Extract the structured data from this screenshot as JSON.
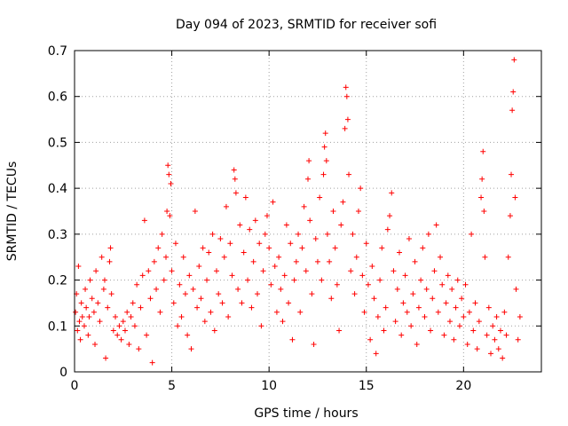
{
  "chart_data": {
    "type": "scatter",
    "title": "Day 094 of 2023, SRMTID for receiver sofi",
    "xlabel": "GPS time / hours",
    "ylabel": "SRMTID / TECUs",
    "xlim": [
      0,
      24
    ],
    "ylim": [
      0,
      0.7
    ],
    "xticks": [
      0,
      5,
      10,
      15,
      20
    ],
    "xtick_labels": [
      "0",
      "5",
      "10",
      "15",
      "20"
    ],
    "yticks": [
      0,
      0.1,
      0.2,
      0.3,
      0.4,
      0.5,
      0.6,
      0.7
    ],
    "ytick_labels": [
      "0",
      "0.1",
      "0.2",
      "0.3",
      "0.4",
      "0.5",
      "0.6",
      "0.7"
    ],
    "grid": true,
    "marker": "+",
    "color": "#ff0000",
    "series": [
      {
        "name": "SRMTID",
        "points": [
          [
            0.05,
            0.13
          ],
          [
            0.1,
            0.17
          ],
          [
            0.15,
            0.09
          ],
          [
            0.2,
            0.23
          ],
          [
            0.25,
            0.11
          ],
          [
            0.3,
            0.07
          ],
          [
            0.35,
            0.15
          ],
          [
            0.4,
            0.12
          ],
          [
            0.5,
            0.1
          ],
          [
            0.55,
            0.18
          ],
          [
            0.6,
            0.14
          ],
          [
            0.7,
            0.08
          ],
          [
            0.75,
            0.12
          ],
          [
            0.8,
            0.2
          ],
          [
            0.9,
            0.16
          ],
          [
            1.0,
            0.13
          ],
          [
            1.05,
            0.06
          ],
          [
            1.1,
            0.22
          ],
          [
            1.2,
            0.15
          ],
          [
            1.3,
            0.11
          ],
          [
            1.4,
            0.25
          ],
          [
            1.5,
            0.18
          ],
          [
            1.55,
            0.2
          ],
          [
            1.6,
            0.03
          ],
          [
            1.7,
            0.14
          ],
          [
            1.8,
            0.24
          ],
          [
            1.85,
            0.27
          ],
          [
            1.9,
            0.17
          ],
          [
            2.0,
            0.09
          ],
          [
            2.1,
            0.12
          ],
          [
            2.2,
            0.08
          ],
          [
            2.3,
            0.1
          ],
          [
            2.4,
            0.07
          ],
          [
            2.5,
            0.11
          ],
          [
            2.6,
            0.09
          ],
          [
            2.7,
            0.13
          ],
          [
            2.8,
            0.06
          ],
          [
            2.9,
            0.12
          ],
          [
            3.0,
            0.15
          ],
          [
            3.1,
            0.1
          ],
          [
            3.2,
            0.19
          ],
          [
            3.3,
            0.05
          ],
          [
            3.4,
            0.14
          ],
          [
            3.5,
            0.21
          ],
          [
            3.6,
            0.33
          ],
          [
            3.7,
            0.08
          ],
          [
            3.8,
            0.22
          ],
          [
            3.9,
            0.16
          ],
          [
            4.0,
            0.02
          ],
          [
            4.1,
            0.24
          ],
          [
            4.2,
            0.18
          ],
          [
            4.3,
            0.27
          ],
          [
            4.4,
            0.13
          ],
          [
            4.5,
            0.3
          ],
          [
            4.6,
            0.2
          ],
          [
            4.7,
            0.25
          ],
          [
            4.75,
            0.35
          ],
          [
            4.8,
            0.45
          ],
          [
            4.85,
            0.43
          ],
          [
            4.9,
            0.34
          ],
          [
            4.95,
            0.41
          ],
          [
            5.0,
            0.22
          ],
          [
            5.1,
            0.15
          ],
          [
            5.2,
            0.28
          ],
          [
            5.3,
            0.1
          ],
          [
            5.4,
            0.19
          ],
          [
            5.5,
            0.12
          ],
          [
            5.6,
            0.25
          ],
          [
            5.7,
            0.17
          ],
          [
            5.8,
            0.08
          ],
          [
            5.9,
            0.21
          ],
          [
            6.0,
            0.05
          ],
          [
            6.1,
            0.18
          ],
          [
            6.2,
            0.35
          ],
          [
            6.3,
            0.14
          ],
          [
            6.4,
            0.23
          ],
          [
            6.5,
            0.16
          ],
          [
            6.6,
            0.27
          ],
          [
            6.7,
            0.11
          ],
          [
            6.8,
            0.2
          ],
          [
            6.9,
            0.26
          ],
          [
            7.0,
            0.13
          ],
          [
            7.1,
            0.3
          ],
          [
            7.2,
            0.09
          ],
          [
            7.3,
            0.22
          ],
          [
            7.4,
            0.17
          ],
          [
            7.5,
            0.29
          ],
          [
            7.6,
            0.15
          ],
          [
            7.7,
            0.25
          ],
          [
            7.8,
            0.36
          ],
          [
            7.9,
            0.12
          ],
          [
            8.0,
            0.28
          ],
          [
            8.1,
            0.21
          ],
          [
            8.2,
            0.44
          ],
          [
            8.25,
            0.42
          ],
          [
            8.3,
            0.39
          ],
          [
            8.4,
            0.18
          ],
          [
            8.5,
            0.32
          ],
          [
            8.6,
            0.15
          ],
          [
            8.7,
            0.26
          ],
          [
            8.8,
            0.38
          ],
          [
            8.9,
            0.2
          ],
          [
            9.0,
            0.31
          ],
          [
            9.1,
            0.14
          ],
          [
            9.2,
            0.24
          ],
          [
            9.3,
            0.33
          ],
          [
            9.4,
            0.17
          ],
          [
            9.5,
            0.28
          ],
          [
            9.6,
            0.1
          ],
          [
            9.7,
            0.22
          ],
          [
            9.8,
            0.3
          ],
          [
            9.9,
            0.34
          ],
          [
            10.0,
            0.27
          ],
          [
            10.1,
            0.19
          ],
          [
            10.2,
            0.37
          ],
          [
            10.3,
            0.23
          ],
          [
            10.4,
            0.13
          ],
          [
            10.5,
            0.25
          ],
          [
            10.6,
            0.18
          ],
          [
            10.7,
            0.11
          ],
          [
            10.8,
            0.21
          ],
          [
            10.9,
            0.32
          ],
          [
            11.0,
            0.15
          ],
          [
            11.1,
            0.28
          ],
          [
            11.2,
            0.07
          ],
          [
            11.3,
            0.2
          ],
          [
            11.4,
            0.24
          ],
          [
            11.5,
            0.3
          ],
          [
            11.6,
            0.13
          ],
          [
            11.7,
            0.27
          ],
          [
            11.8,
            0.36
          ],
          [
            11.9,
            0.22
          ],
          [
            12.0,
            0.42
          ],
          [
            12.05,
            0.46
          ],
          [
            12.1,
            0.33
          ],
          [
            12.2,
            0.17
          ],
          [
            12.3,
            0.06
          ],
          [
            12.4,
            0.29
          ],
          [
            12.5,
            0.24
          ],
          [
            12.6,
            0.38
          ],
          [
            12.7,
            0.2
          ],
          [
            12.8,
            0.43
          ],
          [
            12.85,
            0.49
          ],
          [
            12.9,
            0.52
          ],
          [
            12.95,
            0.46
          ],
          [
            13.0,
            0.3
          ],
          [
            13.1,
            0.24
          ],
          [
            13.2,
            0.16
          ],
          [
            13.3,
            0.35
          ],
          [
            13.4,
            0.27
          ],
          [
            13.5,
            0.19
          ],
          [
            13.6,
            0.09
          ],
          [
            13.7,
            0.32
          ],
          [
            13.8,
            0.37
          ],
          [
            13.9,
            0.53
          ],
          [
            13.95,
            0.62
          ],
          [
            14.0,
            0.6
          ],
          [
            14.05,
            0.55
          ],
          [
            14.1,
            0.43
          ],
          [
            14.2,
            0.22
          ],
          [
            14.3,
            0.3
          ],
          [
            14.4,
            0.17
          ],
          [
            14.5,
            0.25
          ],
          [
            14.6,
            0.35
          ],
          [
            14.7,
            0.4
          ],
          [
            14.8,
            0.21
          ],
          [
            14.9,
            0.13
          ],
          [
            15.0,
            0.28
          ],
          [
            15.1,
            0.19
          ],
          [
            15.2,
            0.07
          ],
          [
            15.3,
            0.23
          ],
          [
            15.4,
            0.16
          ],
          [
            15.5,
            0.04
          ],
          [
            15.6,
            0.12
          ],
          [
            15.7,
            0.2
          ],
          [
            15.8,
            0.27
          ],
          [
            15.9,
            0.09
          ],
          [
            16.0,
            0.14
          ],
          [
            16.1,
            0.31
          ],
          [
            16.2,
            0.34
          ],
          [
            16.3,
            0.39
          ],
          [
            16.4,
            0.22
          ],
          [
            16.5,
            0.11
          ],
          [
            16.6,
            0.18
          ],
          [
            16.7,
            0.26
          ],
          [
            16.8,
            0.08
          ],
          [
            16.9,
            0.15
          ],
          [
            17.0,
            0.21
          ],
          [
            17.1,
            0.13
          ],
          [
            17.2,
            0.29
          ],
          [
            17.3,
            0.1
          ],
          [
            17.4,
            0.17
          ],
          [
            17.5,
            0.24
          ],
          [
            17.6,
            0.06
          ],
          [
            17.7,
            0.14
          ],
          [
            17.8,
            0.2
          ],
          [
            17.9,
            0.27
          ],
          [
            18.0,
            0.12
          ],
          [
            18.1,
            0.18
          ],
          [
            18.2,
            0.3
          ],
          [
            18.3,
            0.09
          ],
          [
            18.4,
            0.16
          ],
          [
            18.5,
            0.22
          ],
          [
            18.6,
            0.32
          ],
          [
            18.7,
            0.13
          ],
          [
            18.8,
            0.25
          ],
          [
            18.9,
            0.19
          ],
          [
            19.0,
            0.08
          ],
          [
            19.1,
            0.15
          ],
          [
            19.2,
            0.21
          ],
          [
            19.3,
            0.11
          ],
          [
            19.4,
            0.18
          ],
          [
            19.5,
            0.07
          ],
          [
            19.6,
            0.14
          ],
          [
            19.7,
            0.2
          ],
          [
            19.8,
            0.1
          ],
          [
            19.9,
            0.16
          ],
          [
            20.0,
            0.12
          ],
          [
            20.1,
            0.19
          ],
          [
            20.2,
            0.06
          ],
          [
            20.3,
            0.13
          ],
          [
            20.4,
            0.3
          ],
          [
            20.5,
            0.09
          ],
          [
            20.6,
            0.15
          ],
          [
            20.7,
            0.05
          ],
          [
            20.8,
            0.11
          ],
          [
            20.9,
            0.38
          ],
          [
            20.95,
            0.42
          ],
          [
            21.0,
            0.48
          ],
          [
            21.05,
            0.35
          ],
          [
            21.1,
            0.25
          ],
          [
            21.2,
            0.08
          ],
          [
            21.3,
            0.14
          ],
          [
            21.4,
            0.04
          ],
          [
            21.5,
            0.1
          ],
          [
            21.6,
            0.07
          ],
          [
            21.7,
            0.12
          ],
          [
            21.8,
            0.05
          ],
          [
            21.9,
            0.09
          ],
          [
            22.0,
            0.03
          ],
          [
            22.1,
            0.13
          ],
          [
            22.2,
            0.08
          ],
          [
            22.3,
            0.25
          ],
          [
            22.4,
            0.34
          ],
          [
            22.45,
            0.43
          ],
          [
            22.5,
            0.57
          ],
          [
            22.55,
            0.61
          ],
          [
            22.6,
            0.68
          ],
          [
            22.65,
            0.38
          ],
          [
            22.7,
            0.18
          ],
          [
            22.8,
            0.07
          ],
          [
            22.9,
            0.12
          ]
        ]
      }
    ]
  }
}
